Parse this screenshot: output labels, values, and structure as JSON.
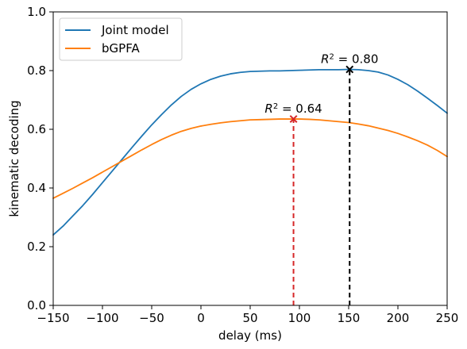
{
  "chart_data": {
    "type": "line",
    "xlabel": "delay (ms)",
    "ylabel": "kinematic decoding",
    "xlim": [
      -150,
      250
    ],
    "ylim": [
      0.0,
      1.0
    ],
    "xticks": [
      -150,
      -100,
      -50,
      0,
      50,
      100,
      150,
      200,
      250
    ],
    "yticks": [
      0.0,
      0.2,
      0.4,
      0.6,
      0.8,
      1.0
    ],
    "xtick_labels": [
      "−150",
      "−100",
      "−50",
      "0",
      "50",
      "100",
      "150",
      "200",
      "250"
    ],
    "ytick_labels": [
      "0.0",
      "0.2",
      "0.4",
      "0.6",
      "0.8",
      "1.0"
    ],
    "grid": false,
    "legend_position": "top-left",
    "series": [
      {
        "name": "Joint model",
        "color": "#1f77b4",
        "x": [
          -150,
          -140,
          -130,
          -120,
          -110,
          -100,
          -90,
          -80,
          -70,
          -60,
          -50,
          -40,
          -30,
          -20,
          -10,
          0,
          10,
          20,
          30,
          40,
          50,
          60,
          70,
          80,
          90,
          100,
          110,
          120,
          130,
          140,
          150,
          160,
          170,
          180,
          190,
          200,
          210,
          220,
          230,
          240,
          250
        ],
        "values": [
          0.24,
          0.27,
          0.305,
          0.34,
          0.378,
          0.418,
          0.458,
          0.498,
          0.538,
          0.577,
          0.615,
          0.65,
          0.683,
          0.712,
          0.736,
          0.755,
          0.77,
          0.781,
          0.789,
          0.794,
          0.797,
          0.798,
          0.799,
          0.799,
          0.8,
          0.801,
          0.802,
          0.803,
          0.803,
          0.803,
          0.804,
          0.803,
          0.8,
          0.795,
          0.785,
          0.77,
          0.752,
          0.73,
          0.706,
          0.681,
          0.655
        ]
      },
      {
        "name": "bGPFA",
        "color": "#ff7f0e",
        "x": [
          -150,
          -140,
          -130,
          -120,
          -110,
          -100,
          -90,
          -80,
          -70,
          -60,
          -50,
          -40,
          -30,
          -20,
          -10,
          0,
          10,
          20,
          30,
          40,
          50,
          60,
          70,
          80,
          90,
          100,
          110,
          120,
          130,
          140,
          150,
          160,
          170,
          180,
          190,
          200,
          210,
          220,
          230,
          240,
          250
        ],
        "values": [
          0.365,
          0.382,
          0.399,
          0.417,
          0.435,
          0.454,
          0.473,
          0.492,
          0.511,
          0.53,
          0.548,
          0.565,
          0.58,
          0.593,
          0.603,
          0.611,
          0.617,
          0.622,
          0.626,
          0.629,
          0.632,
          0.633,
          0.634,
          0.635,
          0.635,
          0.635,
          0.634,
          0.632,
          0.629,
          0.626,
          0.623,
          0.618,
          0.612,
          0.604,
          0.596,
          0.586,
          0.574,
          0.561,
          0.546,
          0.528,
          0.507
        ]
      }
    ],
    "annotations": [
      {
        "text_prefix": "R",
        "text_sup": "2",
        "text_suffix": " = 0.80",
        "x": 151,
        "y": 0.804,
        "color": "#000000"
      },
      {
        "text_prefix": "R",
        "text_sup": "2",
        "text_suffix": " = 0.64",
        "x": 94,
        "y": 0.635,
        "color": "#d62728"
      }
    ]
  }
}
